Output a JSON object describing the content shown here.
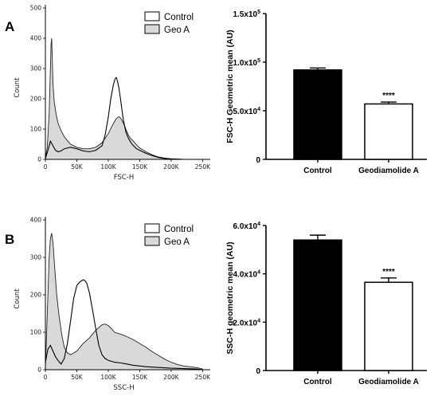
{
  "panels": [
    {
      "letter": "A",
      "histogram": {
        "type": "area",
        "xlabel": "FSC-H",
        "ylabel": "Count",
        "xlim": [
          0,
          262144
        ],
        "ylim": [
          0,
          500
        ],
        "x_ticks": [
          0,
          50000,
          100000,
          150000,
          200000,
          250000
        ],
        "x_tick_labels": [
          "0",
          "50K",
          "100K",
          "150K",
          "200K",
          "250K"
        ],
        "y_ticks": [
          0,
          100,
          200,
          300,
          400,
          500
        ],
        "y_tick_labels": [
          "0",
          "100",
          "200",
          "300",
          "400",
          "500"
        ],
        "legend_position": "top-right",
        "series": [
          {
            "name": "Control",
            "style": "line",
            "x": [
              0,
              4000,
              8000,
              12000,
              16000,
              20000,
              25000,
              30000,
              40000,
              50000,
              60000,
              70000,
              80000,
              90000,
              95000,
              100000,
              104000,
              108000,
              111000,
              113000,
              115000,
              117000,
              120000,
              124000,
              128000,
              132000,
              136000,
              140000,
              145000,
              150000,
              160000,
              170000,
              180000,
              190000,
              200000,
              220000,
              250000
            ],
            "y": [
              2,
              30,
              60,
              45,
              30,
              25,
              28,
              35,
              40,
              35,
              28,
              25,
              30,
              45,
              80,
              140,
              200,
              245,
              268,
              270,
              255,
              235,
              190,
              130,
              90,
              70,
              55,
              45,
              35,
              30,
              20,
              12,
              6,
              3,
              1,
              0,
              0
            ]
          },
          {
            "name": "Geo A",
            "style": "fill",
            "x": [
              0,
              3000,
              6000,
              8000,
              9000,
              10000,
              11000,
              12000,
              14000,
              17000,
              20000,
              25000,
              30000,
              35000,
              40000,
              50000,
              60000,
              70000,
              80000,
              90000,
              100000,
              106000,
              112000,
              116000,
              118000,
              120000,
              124000,
              128000,
              132000,
              136000,
              140000,
              145000,
              150000,
              160000,
              170000,
              180000,
              190000,
              200000,
              220000,
              250000
            ],
            "y": [
              5,
              40,
              150,
              300,
              380,
              400,
              330,
              250,
              190,
              150,
              120,
              95,
              75,
              62,
              50,
              40,
              35,
              35,
              40,
              55,
              85,
              110,
              133,
              140,
              140,
              135,
              120,
              100,
              80,
              68,
              60,
              48,
              38,
              25,
              15,
              8,
              4,
              2,
              0,
              0
            ]
          }
        ]
      },
      "bar": {
        "type": "bar",
        "categories": [
          "Control",
          "Geodiamolide A"
        ],
        "values": [
          92000,
          57000
        ],
        "errors": [
          2000,
          2000
        ],
        "colors": [
          "#000000",
          "#ffffff"
        ],
        "ylabel": "FSC-H Geometric mean (AU)",
        "ylim": [
          0,
          150000
        ],
        "y_ticks": [
          0,
          50000,
          100000,
          150000
        ],
        "y_tick_labels": [
          "0",
          "5.0x10^4",
          "1.0x10^5",
          "1.5x10^5"
        ],
        "significance": [
          "",
          "****"
        ]
      }
    },
    {
      "letter": "B",
      "histogram": {
        "type": "area",
        "xlabel": "SSC-H",
        "ylabel": "Count",
        "xlim": [
          0,
          262144
        ],
        "ylim": [
          0,
          400
        ],
        "x_ticks": [
          0,
          50000,
          100000,
          150000,
          200000,
          250000
        ],
        "x_tick_labels": [
          "0",
          "50K",
          "100K",
          "150K",
          "200K",
          "250K"
        ],
        "y_ticks": [
          0,
          100,
          200,
          300,
          400
        ],
        "y_tick_labels": [
          "0",
          "100",
          "200",
          "300",
          "400"
        ],
        "legend_position": "top-right",
        "series": [
          {
            "name": "Control",
            "style": "line",
            "x": [
              0,
              4000,
              8000,
              12000,
              16000,
              20000,
              25000,
              30000,
              35000,
              40000,
              45000,
              50000,
              55000,
              60000,
              63000,
              66000,
              70000,
              75000,
              80000,
              85000,
              90000,
              95000,
              100000,
              110000,
              120000,
              130000,
              140000,
              150000,
              160000,
              180000,
              200000,
              220000,
              240000,
              250000
            ],
            "y": [
              20,
              55,
              65,
              50,
              35,
              25,
              15,
              30,
              70,
              130,
              190,
              225,
              235,
              240,
              238,
              230,
              205,
              160,
              110,
              65,
              40,
              30,
              25,
              20,
              18,
              15,
              12,
              10,
              8,
              6,
              4,
              3,
              2,
              0
            ]
          },
          {
            "name": "Geo A",
            "style": "fill",
            "x": [
              0,
              3000,
              6000,
              8000,
              10000,
              12000,
              15000,
              18000,
              22000,
              26000,
              30000,
              35000,
              40000,
              50000,
              60000,
              70000,
              80000,
              90000,
              95000,
              100000,
              105000,
              110000,
              120000,
              130000,
              140000,
              150000,
              160000,
              170000,
              180000,
              190000,
              200000,
              210000,
              220000,
              240000,
              250000
            ],
            "y": [
              5,
              150,
              300,
              350,
              365,
              340,
              270,
              200,
              140,
              95,
              60,
              45,
              40,
              50,
              70,
              85,
              105,
              120,
              122,
              118,
              110,
              100,
              95,
              88,
              80,
              70,
              60,
              48,
              38,
              28,
              20,
              14,
              10,
              6,
              2
            ]
          }
        ]
      },
      "bar": {
        "type": "bar",
        "categories": [
          "Control",
          "Geodiamolide A"
        ],
        "values": [
          54000,
          36500
        ],
        "errors": [
          2000,
          1800
        ],
        "colors": [
          "#000000",
          "#ffffff"
        ],
        "ylabel": "SSC-H geometric mean (AU)",
        "ylim": [
          0,
          60000
        ],
        "y_ticks": [
          0,
          20000,
          40000,
          60000
        ],
        "y_tick_labels": [
          "0",
          "2.0x10^4",
          "4.0x10^4",
          "6.0x10^4"
        ],
        "significance": [
          "",
          "****"
        ]
      }
    }
  ],
  "chart_data": [
    {
      "type": "area",
      "panel": "A",
      "xlabel": "FSC-H",
      "ylabel": "Count",
      "xlim": [
        0,
        262144
      ],
      "ylim": [
        0,
        500
      ],
      "series": [
        {
          "name": "Control",
          "x": [
            0,
            4000,
            8000,
            12000,
            16000,
            20000,
            25000,
            30000,
            40000,
            50000,
            60000,
            70000,
            80000,
            90000,
            95000,
            100000,
            104000,
            108000,
            111000,
            113000,
            115000,
            117000,
            120000,
            124000,
            128000,
            132000,
            136000,
            140000,
            145000,
            150000,
            160000,
            170000,
            180000,
            190000,
            200000,
            220000,
            250000
          ],
          "y": [
            2,
            30,
            60,
            45,
            30,
            25,
            28,
            35,
            40,
            35,
            28,
            25,
            30,
            45,
            80,
            140,
            200,
            245,
            268,
            270,
            255,
            235,
            190,
            130,
            90,
            70,
            55,
            45,
            35,
            30,
            20,
            12,
            6,
            3,
            1,
            0,
            0
          ]
        },
        {
          "name": "Geo A",
          "x": [
            0,
            3000,
            6000,
            8000,
            9000,
            10000,
            11000,
            12000,
            14000,
            17000,
            20000,
            25000,
            30000,
            35000,
            40000,
            50000,
            60000,
            70000,
            80000,
            90000,
            100000,
            106000,
            112000,
            116000,
            118000,
            120000,
            124000,
            128000,
            132000,
            136000,
            140000,
            145000,
            150000,
            160000,
            170000,
            180000,
            190000,
            200000,
            220000,
            250000
          ],
          "y": [
            5,
            40,
            150,
            300,
            380,
            400,
            330,
            250,
            190,
            150,
            120,
            95,
            75,
            62,
            50,
            40,
            35,
            35,
            40,
            55,
            85,
            110,
            133,
            140,
            140,
            135,
            120,
            100,
            80,
            68,
            60,
            48,
            38,
            25,
            15,
            8,
            4,
            2,
            0,
            0
          ]
        }
      ]
    },
    {
      "type": "bar",
      "panel": "A",
      "categories": [
        "Control",
        "Geodiamolide A"
      ],
      "values": [
        92000,
        57000
      ],
      "errors": [
        2000,
        2000
      ],
      "ylabel": "FSC-H Geometric mean (AU)",
      "ylim": [
        0,
        150000
      ]
    },
    {
      "type": "area",
      "panel": "B",
      "xlabel": "SSC-H",
      "ylabel": "Count",
      "xlim": [
        0,
        262144
      ],
      "ylim": [
        0,
        400
      ],
      "series": [
        {
          "name": "Control",
          "x": [
            0,
            4000,
            8000,
            12000,
            16000,
            20000,
            25000,
            30000,
            35000,
            40000,
            45000,
            50000,
            55000,
            60000,
            63000,
            66000,
            70000,
            75000,
            80000,
            85000,
            90000,
            95000,
            100000,
            110000,
            120000,
            130000,
            140000,
            150000,
            160000,
            180000,
            200000,
            220000,
            240000,
            250000
          ],
          "y": [
            20,
            55,
            65,
            50,
            35,
            25,
            15,
            30,
            70,
            130,
            190,
            225,
            235,
            240,
            238,
            230,
            205,
            160,
            110,
            65,
            40,
            30,
            25,
            20,
            18,
            15,
            12,
            10,
            8,
            6,
            4,
            3,
            2,
            0
          ]
        },
        {
          "name": "Geo A",
          "x": [
            0,
            3000,
            6000,
            8000,
            10000,
            12000,
            15000,
            18000,
            22000,
            26000,
            30000,
            35000,
            40000,
            50000,
            60000,
            70000,
            80000,
            90000,
            95000,
            100000,
            105000,
            110000,
            120000,
            130000,
            140000,
            150000,
            160000,
            170000,
            180000,
            190000,
            200000,
            210000,
            220000,
            240000,
            250000
          ],
          "y": [
            5,
            150,
            300,
            350,
            365,
            340,
            270,
            200,
            140,
            95,
            60,
            45,
            40,
            50,
            70,
            85,
            105,
            120,
            122,
            118,
            110,
            100,
            95,
            88,
            80,
            70,
            60,
            48,
            38,
            28,
            20,
            14,
            10,
            6,
            2
          ]
        }
      ]
    },
    {
      "type": "bar",
      "panel": "B",
      "categories": [
        "Control",
        "Geodiamolide A"
      ],
      "values": [
        54000,
        36500
      ],
      "errors": [
        2000,
        1800
      ],
      "ylabel": "SSC-H geometric mean (AU)",
      "ylim": [
        0,
        60000
      ]
    }
  ],
  "colors": {
    "fill": "#d9d9d9",
    "line": "#000000",
    "axis": "#000000"
  }
}
